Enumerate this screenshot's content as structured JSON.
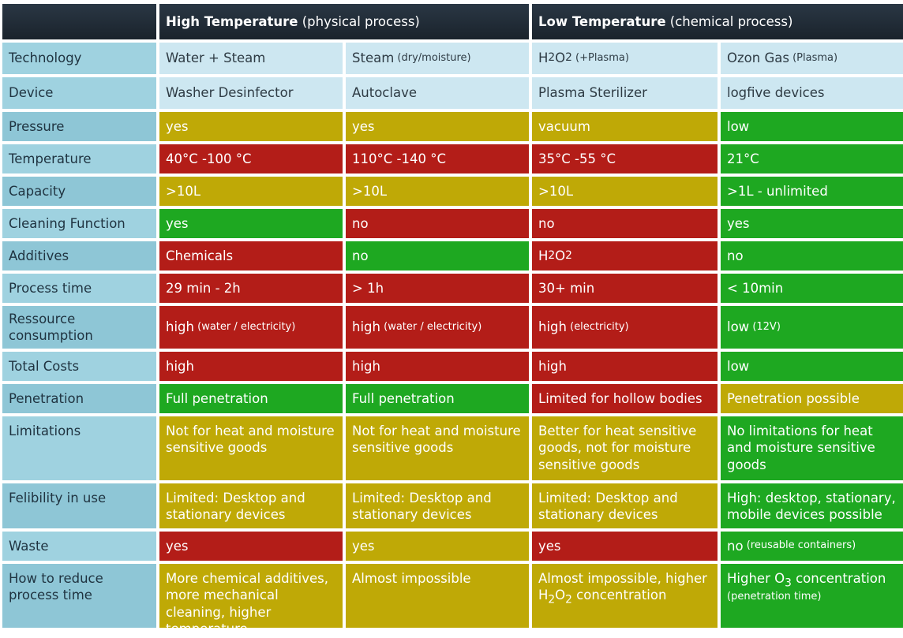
{
  "header": {
    "high": {
      "bold": "High Temperature",
      "rest": " (physical process)"
    },
    "low": {
      "bold": "Low Temperature",
      "rest": " (chemical process)"
    }
  },
  "technology": {
    "label": "Technology",
    "cols": [
      "Water + Steam",
      "Steam",
      "H",
      "Ozon Gas"
    ],
    "steam_note": " (dry/moisture)",
    "h2o2_sub": "2",
    "h2o2_o": "O",
    "h2o2_sub2": "2",
    "h2o2_note": " (+Plasma)",
    "ozon_note": " (Plasma)"
  },
  "device": {
    "label": "Device",
    "cols": [
      "Washer Desinfector",
      "Autoclave",
      "Plasma Sterilizer",
      "logfive devices"
    ]
  },
  "pressure": {
    "label": "Pressure",
    "cols": [
      "yes",
      "yes",
      "vacuum",
      "low"
    ]
  },
  "temperature": {
    "label": "Temperature",
    "cols": [
      "40°C -100 °C",
      "110°C -140 °C",
      "35°C -55 °C",
      "21°C"
    ]
  },
  "capacity": {
    "label": "Capacity",
    "cols": [
      ">10L",
      ">10L",
      ">10L",
      ">1L - unlimited"
    ]
  },
  "cleaning": {
    "label": "Cleaning Function",
    "cols": [
      "yes",
      "no",
      "no",
      "yes"
    ]
  },
  "additives": {
    "label": "Additives",
    "cols": [
      "Chemicals",
      "no",
      "H",
      "no"
    ],
    "h2o2_sub": "2",
    "h2o2_o": "O",
    "h2o2_sub2": "2"
  },
  "process_time": {
    "label": "Process time",
    "cols": [
      "29 min - 2h",
      "> 1h",
      "30+ min",
      "< 10min"
    ]
  },
  "resource": {
    "label": "Ressource consumption",
    "cols": [
      {
        "main": "high",
        "note": " (water / electricity)"
      },
      {
        "main": "high",
        "note": " (water / electricity)"
      },
      {
        "main": "high",
        "note": " (electricity)"
      },
      {
        "main": "low",
        "note": " (12V)"
      }
    ]
  },
  "total_costs": {
    "label": "Total Costs",
    "cols": [
      "high",
      "high",
      "high",
      "low"
    ]
  },
  "penetration": {
    "label": "Penetration",
    "cols": [
      "Full penetration",
      "Full penetration",
      "Limited for hollow bodies",
      "Penetration possible"
    ]
  },
  "limitations": {
    "label": "Limitations",
    "cols": [
      "Not for heat and moisture sensitive goods",
      "Not for heat and moisture sensitive goods",
      "Better for heat sensitive goods, not for moisture sensitive goods",
      "No limitations for heat and moisture sensitive goods"
    ]
  },
  "flexibility": {
    "label": "Felibility in use",
    "cols": [
      "Limited: Desktop and stationary devices",
      "Limited: Desktop and stationary devices",
      "Limited: Desktop and stationary devices",
      "High: desktop, stationary, mobile devices possible"
    ]
  },
  "waste": {
    "label": "Waste",
    "cols": [
      {
        "main": "yes",
        "note": ""
      },
      {
        "main": "yes",
        "note": ""
      },
      {
        "main": "yes",
        "note": ""
      },
      {
        "main": "no",
        "note": " (reusable containers)"
      }
    ]
  },
  "reduce": {
    "label": "How to reduce process time",
    "col1": "More chemical additives, more mechanical cleaning, higher temperature",
    "col2": "Almost impossible",
    "col3_a": "Almost impossible, higher",
    "col3_h": "H",
    "col3_sub": "2",
    "col3_o": "O",
    "col3_sub2": "2",
    "col3_b": " concentration",
    "col4_a": "Higher O",
    "col4_sub": "3",
    "col4_b": " concentration",
    "col4_note": "(penetration time)"
  },
  "colors": {
    "yellow": "#bfa906",
    "red": "#b31d18",
    "green": "#1ea821",
    "label": "#8ec6d6",
    "light": "#cde7f1",
    "header": "#1f2a33"
  }
}
